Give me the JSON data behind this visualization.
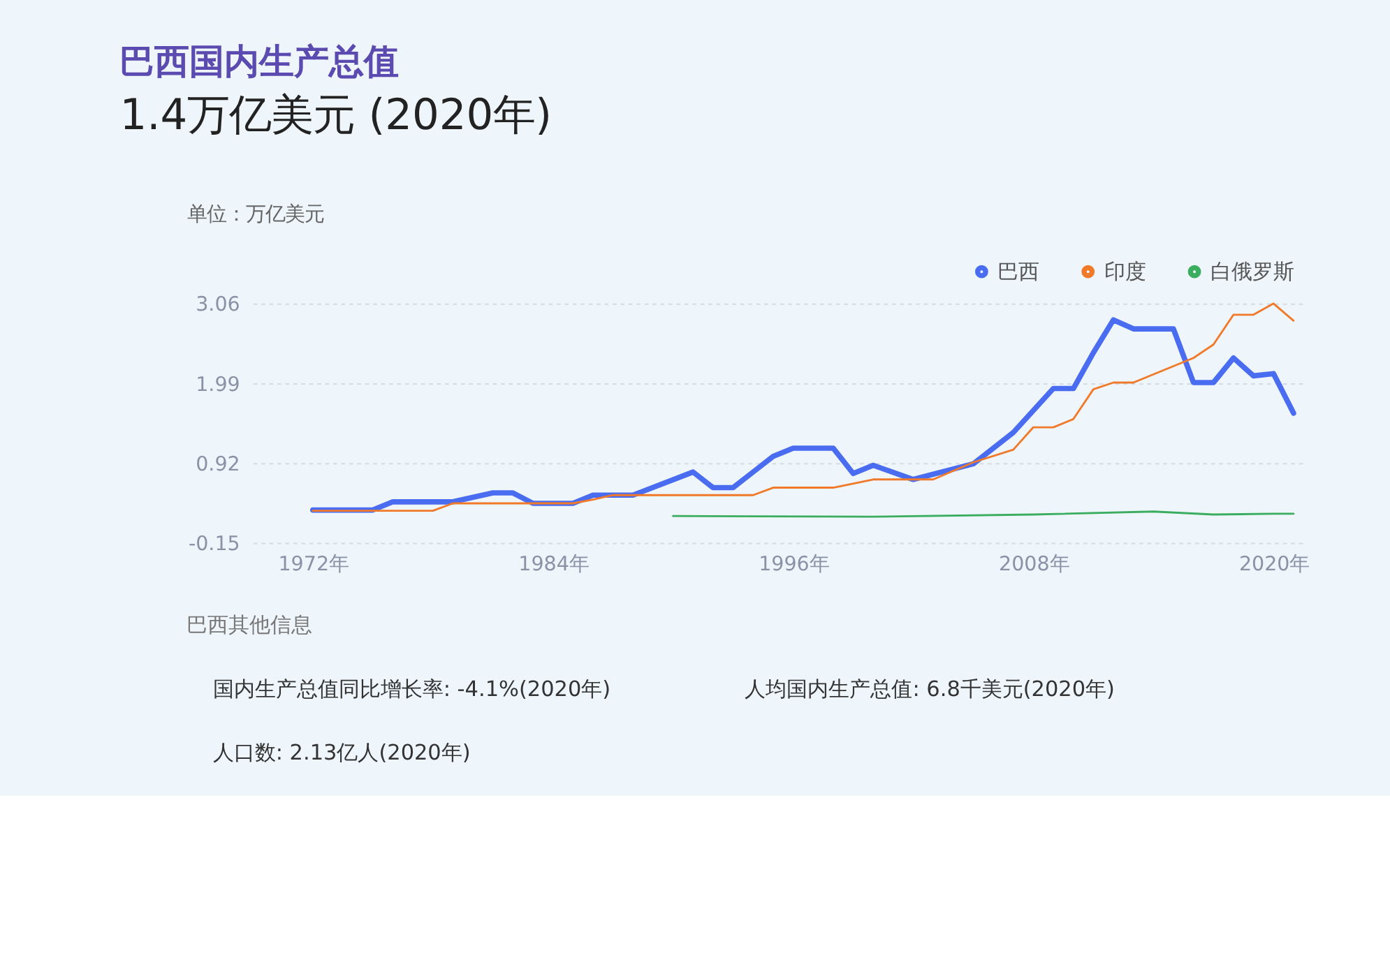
{
  "chart_data": {
    "type": "line",
    "title": "巴西国内生产总值",
    "subtitle": "1.4万亿美元 (2020年)",
    "ylabel": "单位：万亿美元",
    "xlim": [
      1969,
      2021.5
    ],
    "xticks": [
      {
        "value": 1972,
        "label": "1972年"
      },
      {
        "value": 1984,
        "label": "1984年"
      },
      {
        "value": 1996,
        "label": "1996年"
      },
      {
        "value": 2008,
        "label": "2008年"
      },
      {
        "value": 2020,
        "label": "2020年"
      }
    ],
    "ylim": [
      -0.15,
      3.06
    ],
    "yticks": [
      -0.15,
      0.92,
      1.99,
      3.06
    ],
    "grid": "y",
    "legend": "top right",
    "marker": "none",
    "line_style": "solid",
    "series": [
      {
        "name": "巴西",
        "color": "#4a6cf0",
        "x": [
          1972,
          1975,
          1976,
          1979,
          1981,
          1982,
          1983,
          1985,
          1986,
          1988,
          1991,
          1992,
          1993,
          1994,
          1995,
          1996,
          1998,
          1999,
          2000,
          2002,
          2005,
          2007,
          2009,
          2010,
          2011,
          2012,
          2013,
          2015,
          2016,
          2017,
          2018,
          2019,
          2020,
          2021
        ],
        "values": [
          0.29,
          0.29,
          0.4,
          0.4,
          0.52,
          0.52,
          0.38,
          0.38,
          0.49,
          0.49,
          0.8,
          0.59,
          0.59,
          0.8,
          1.01,
          1.12,
          1.12,
          0.78,
          0.89,
          0.7,
          0.91,
          1.33,
          1.92,
          1.92,
          2.4,
          2.84,
          2.72,
          2.72,
          2.0,
          2.0,
          2.33,
          2.09,
          2.12,
          1.59
        ]
      },
      {
        "name": "印度",
        "color": "#f07a2a",
        "x": [
          1972,
          1978,
          1979,
          1985,
          1986,
          1987,
          1994,
          1995,
          1998,
          2000,
          2003,
          2005,
          2007,
          2008,
          2009,
          2010,
          2011,
          2012,
          2013,
          2016,
          2017,
          2018,
          2019,
          2020,
          2021
        ],
        "values": [
          0.28,
          0.28,
          0.38,
          0.38,
          0.43,
          0.49,
          0.49,
          0.59,
          0.59,
          0.7,
          0.7,
          0.93,
          1.1,
          1.4,
          1.4,
          1.51,
          1.91,
          2.0,
          2.0,
          2.33,
          2.51,
          2.91,
          2.91,
          3.06,
          2.83
        ]
      },
      {
        "name": "白俄罗斯",
        "color": "#3aad5f",
        "x": [
          1990,
          2000,
          2008,
          2014,
          2017,
          2020,
          2021
        ],
        "values": [
          0.21,
          0.2,
          0.23,
          0.27,
          0.23,
          0.24,
          0.24
        ]
      }
    ],
    "annotations": [
      "巴西其他信息",
      "国内生产总值同比增长率: -4.1%(2020年)",
      "人均国内生产总值: 6.8千美元(2020年)",
      "人口数: 2.13亿人(2020年)"
    ]
  }
}
